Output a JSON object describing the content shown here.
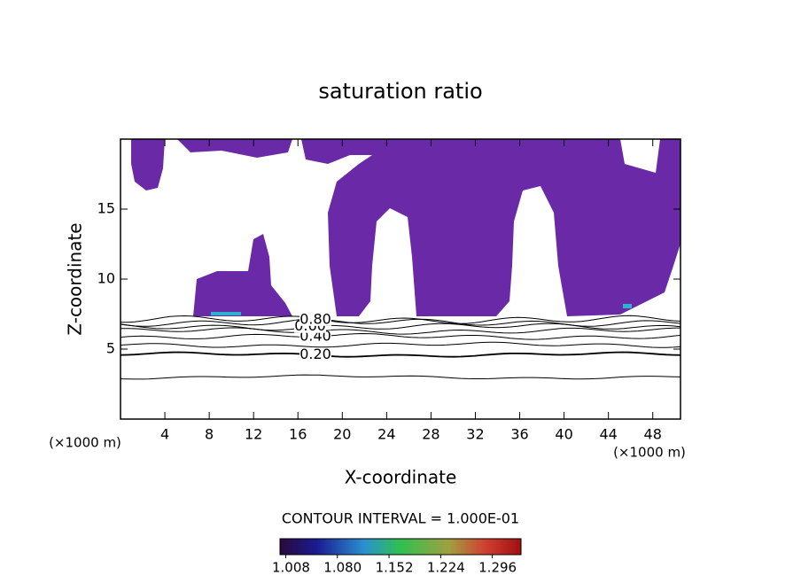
{
  "chart_data": {
    "type": "contour",
    "title": "saturation ratio",
    "xlabel": "X-coordinate",
    "ylabel": "Z-coordinate",
    "x_unit_label": "(×1000 m)",
    "xlim": [
      0,
      50.5
    ],
    "ylim": [
      0,
      20
    ],
    "xticks": [
      4,
      8,
      12,
      16,
      20,
      24,
      28,
      32,
      36,
      40,
      44,
      48
    ],
    "yticks": [
      5,
      10,
      15
    ],
    "contours": [
      {
        "value": 0.1,
        "z": 3.0
      },
      {
        "value": 0.2,
        "label": "0.20",
        "z": 4.6
      },
      {
        "value": 0.3,
        "z": 5.3
      },
      {
        "value": 0.4,
        "label": "0.40",
        "z": 5.9
      },
      {
        "value": 0.5,
        "z": 6.3
      },
      {
        "value": 0.6,
        "label": "0.60",
        "z": 6.6
      },
      {
        "value": 0.7,
        "z": 6.9
      },
      {
        "value": 0.8,
        "label": "0.80",
        "z": 7.1
      }
    ],
    "contour_interval_text": "CONTOUR INTERVAL = 1.000E-01",
    "colorbar": {
      "lim": [
        1.0,
        1.336
      ],
      "ticks": [
        {
          "value": 1.008,
          "label": "1.008"
        },
        {
          "value": 1.08,
          "label": "1.080"
        },
        {
          "value": 1.152,
          "label": "1.152"
        },
        {
          "value": 1.224,
          "label": "1.224"
        },
        {
          "value": 1.296,
          "label": "1.296"
        }
      ]
    },
    "fill_color": "#6a2aa8"
  }
}
